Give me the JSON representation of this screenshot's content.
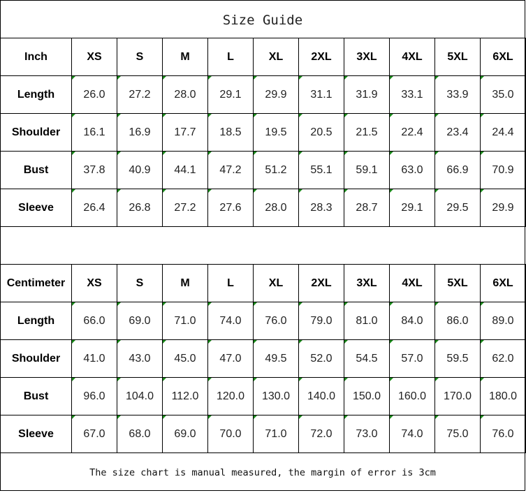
{
  "title": "Size Guide",
  "sizes": [
    "XS",
    "S",
    "M",
    "L",
    "XL",
    "2XL",
    "3XL",
    "4XL",
    "5XL",
    "6XL"
  ],
  "tables": [
    {
      "unit": "Inch",
      "rows": [
        {
          "label": "Length",
          "values": [
            "26.0",
            "27.2",
            "28.0",
            "29.1",
            "29.9",
            "31.1",
            "31.9",
            "33.1",
            "33.9",
            "35.0"
          ]
        },
        {
          "label": "Shoulder",
          "values": [
            "16.1",
            "16.9",
            "17.7",
            "18.5",
            "19.5",
            "20.5",
            "21.5",
            "22.4",
            "23.4",
            "24.4"
          ]
        },
        {
          "label": "Bust",
          "values": [
            "37.8",
            "40.9",
            "44.1",
            "47.2",
            "51.2",
            "55.1",
            "59.1",
            "63.0",
            "66.9",
            "70.9"
          ]
        },
        {
          "label": "Sleeve",
          "values": [
            "26.4",
            "26.8",
            "27.2",
            "27.6",
            "28.0",
            "28.3",
            "28.7",
            "29.1",
            "29.5",
            "29.9"
          ]
        }
      ]
    },
    {
      "unit": "Centimeter",
      "rows": [
        {
          "label": "Length",
          "values": [
            "66.0",
            "69.0",
            "71.0",
            "74.0",
            "76.0",
            "79.0",
            "81.0",
            "84.0",
            "86.0",
            "89.0"
          ]
        },
        {
          "label": "Shoulder",
          "values": [
            "41.0",
            "43.0",
            "45.0",
            "47.0",
            "49.5",
            "52.0",
            "54.5",
            "57.0",
            "59.5",
            "62.0"
          ]
        },
        {
          "label": "Bust",
          "values": [
            "96.0",
            "104.0",
            "112.0",
            "120.0",
            "130.0",
            "140.0",
            "150.0",
            "160.0",
            "170.0",
            "180.0"
          ]
        },
        {
          "label": "Sleeve",
          "values": [
            "67.0",
            "68.0",
            "69.0",
            "70.0",
            "71.0",
            "72.0",
            "73.0",
            "74.0",
            "75.0",
            "76.0"
          ]
        }
      ]
    }
  ],
  "footer": "The size chart is manual measured, the margin of error is 3cm",
  "colors": {
    "cell_marker": "#1a8a1a",
    "border": "#000000"
  }
}
